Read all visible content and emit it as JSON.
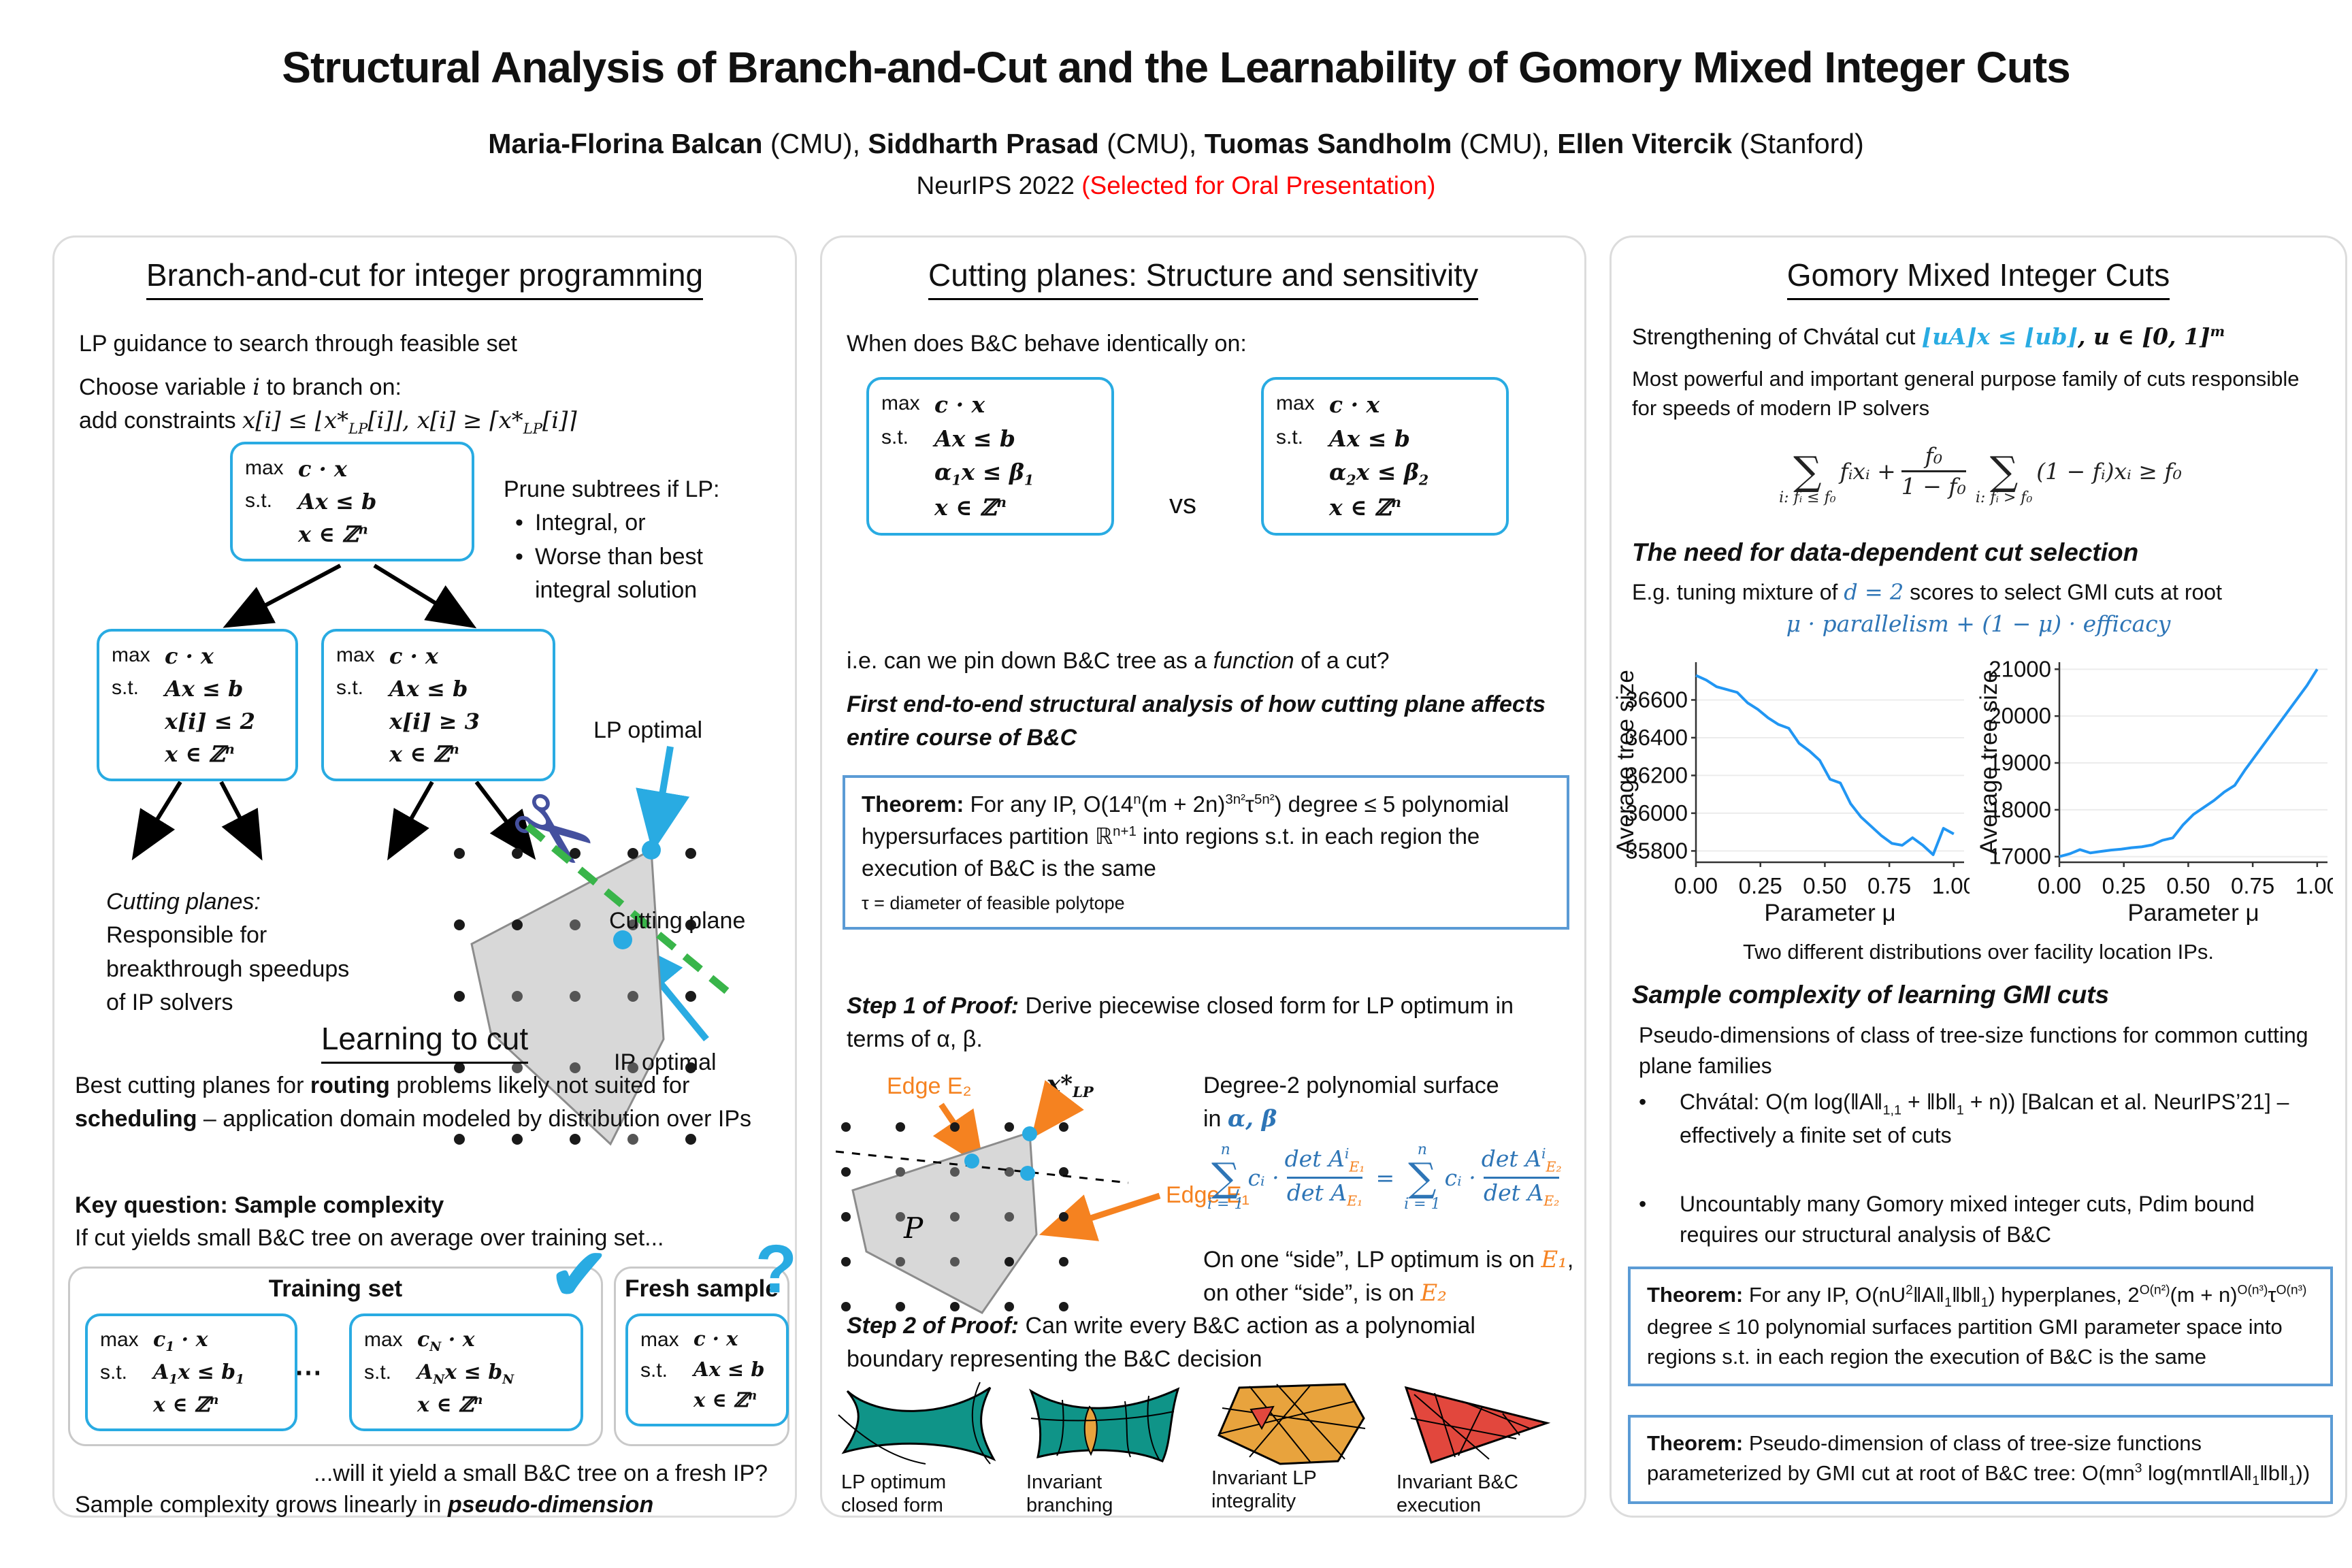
{
  "header": {
    "title": "Structural Analysis of Branch-and-Cut and the Learnability of Gomory Mixed Integer Cuts",
    "authors": [
      {
        "name": "Maria-Florina Balcan",
        "affil": " (CMU), "
      },
      {
        "name": "Siddharth Prasad",
        "affil": " (CMU), "
      },
      {
        "name": "Tuomas Sandholm",
        "affil": " (CMU), "
      },
      {
        "name": "Ellen Vitercik",
        "affil": " (Stanford)"
      }
    ],
    "venue": "NeurIPS 2022 ",
    "venue_note": "(Selected for Oral Presentation)",
    "venue_note_color": "#ff0000"
  },
  "colors": {
    "accent_blue": "#29abe2",
    "theorem_border": "#5b9bd5",
    "equation_blue": "#2e75b6",
    "edge_orange": "#f58220",
    "cut_green": "#39b54a",
    "chart_line": "#2196f3",
    "shape_teal": "#0f9488",
    "shape_orange": "#e8a33d",
    "shape_red": "#e2473d"
  },
  "col1": {
    "heading": "Branch-and-cut for integer programming",
    "p1": "LP guidance to search through feasible set",
    "p2a_pre": "Choose variable ",
    "p2a_var": "i",
    "p2a_post": " to branch on:",
    "p2b_pre": "add constraints ",
    "p2b_math": "x[i] ≤ ⌊x*{LP}[i]⌋, x[i] ≥ ⌈x*{LP}[i]⌉",
    "tree": {
      "root": [
        [
          "max",
          "c · x"
        ],
        [
          "s.t.",
          "Ax ≤ b"
        ],
        [
          "",
          "x ∈ ℤ^{n}"
        ]
      ],
      "left": [
        [
          "max",
          "c · x"
        ],
        [
          "s.t.",
          "Ax ≤ b"
        ],
        [
          "",
          "x[i] ≤ 2"
        ],
        [
          "",
          "x ∈ ℤ^{n}"
        ]
      ],
      "right": [
        [
          "max",
          "c · x"
        ],
        [
          "s.t.",
          "Ax ≤ b"
        ],
        [
          "",
          "x[i] ≥ 3"
        ],
        [
          "",
          "x ∈ ℤ^{n}"
        ]
      ]
    },
    "prune_title": "Prune subtrees if LP:",
    "prune_bullets": [
      "Integral, or",
      "Worse than best integral solution"
    ],
    "scissors_icon": "✂",
    "fig": {
      "lp_optimal": "LP optimal",
      "cutting_plane": "Cutting plane",
      "ip_optimal": "IP optimal",
      "note_italic": "Cutting planes:",
      "note_rest": "Responsible for breakthrough speedups of IP solvers"
    },
    "learn_heading": "Learning to cut",
    "learn_parts": [
      "Best cutting planes for ",
      "routing",
      " problems likely not suited for ",
      "scheduling",
      " – application domain modeled by distribution over IPs"
    ],
    "key_q": "Key question: Sample complexity",
    "if_cut": "If cut yields small B&C tree on average over training set...",
    "training_label": "Training set",
    "check_icon": "✔",
    "fresh_label": "Fresh sample",
    "question_icon": "?",
    "dots": "⋯",
    "train1": [
      [
        "max",
        "c{1} · x"
      ],
      [
        "s.t.",
        "A{1}x ≤ b{1}"
      ],
      [
        "",
        "x ∈ ℤ^{n}"
      ]
    ],
    "trainN": [
      [
        "max",
        "c{N} · x"
      ],
      [
        "s.t.",
        "A{N}x ≤ b{N}"
      ],
      [
        "",
        "x ∈ ℤ^{n}"
      ]
    ],
    "fresh": [
      [
        "max",
        "c · x"
      ],
      [
        "s.t.",
        "Ax ≤ b"
      ],
      [
        "",
        "x ∈ ℤ^{n}"
      ]
    ],
    "will": "...will it yield a small B&C tree on a fresh IP?",
    "sample_pre": "Sample complexity grows linearly in ",
    "sample_bold": "pseudo-dimension"
  },
  "col2": {
    "heading": "Cutting planes: Structure and sensitivity",
    "when": "When does B&C behave identically on:",
    "box1": [
      [
        "max",
        "c · x"
      ],
      [
        "s.t.",
        "Ax ≤ b"
      ],
      [
        "",
        "α{1}x ≤ β{1}"
      ],
      [
        "",
        "x ∈ ℤ^{n}"
      ]
    ],
    "vs": "vs",
    "box2": [
      [
        "max",
        "c · x"
      ],
      [
        "s.t.",
        "Ax ≤ b"
      ],
      [
        "",
        "α{2}x ≤ β{2}"
      ],
      [
        "",
        "x ∈ ℤ^{n}"
      ]
    ],
    "ie_parts": [
      "i.e. can we pin down B&C tree as a ",
      "function",
      " of a cut?"
    ],
    "claim": "First end-to-end structural analysis of how cutting plane affects entire course of B&C",
    "thm_label": "Theorem:",
    "thm_text": " For any IP, O(14^{n}(m + 2n)^{3n²}τ^{5n²}) degree ≤ 5 polynomial hypersurfaces partition ℝ^{n+1} into regions s.t. in each region the execution of B&C is the same",
    "thm_foot": "τ = diameter of feasible polytope",
    "step1_label": "Step 1 of Proof:",
    "step1_text": " Derive piecewise closed form for LP optimum in terms of α, β.",
    "fig": {
      "edge2": "Edge E₂",
      "xlp": "x*{LP}",
      "edge1": "Edge E₁",
      "p": "P",
      "deg_line1": "Degree-2 polynomial surface",
      "deg_line2_pre": "in ",
      "deg_ab": "α, β",
      "eq": {
        "sum_top": "n",
        "sum_bot": "i = 1",
        "coef": "cᵢ ·",
        "det": "det A",
        "sup_i": "i",
        "e1": "E₁",
        "e2": "E₂",
        "equals": "="
      },
      "side_parts": [
        "On one “side”, LP optimum is",
        " on ",
        "E₁",
        ", on other “side”, is on ",
        "E₂"
      ]
    },
    "step2_label": "Step 2 of Proof:",
    "step2_text": " Can write every B&C action as a polynomial boundary representing the B&C decision",
    "shape_labels": [
      "LP optimum closed form",
      "Invariant branching",
      "Invariant LP integrality",
      "Invariant B&C execution"
    ]
  },
  "col3": {
    "heading": "Gomory Mixed Integer Cuts",
    "strength_pre": "Strengthening of Chvátal cut ",
    "strength_math": "⌊uA⌋x ≤ ⌊ub⌋",
    "strength_post_math": ", u ∈ [0, 1]^{m}",
    "p1": "Most powerful and important general purpose family of cuts responsible for speeds of modern IP solvers",
    "gmi_eq": {
      "sum1_bot": "i: fᵢ ≤ f₀",
      "term1": "fᵢxᵢ +",
      "frac_top": "f₀",
      "frac_bot": "1 − f₀",
      "sum2_bot": "i: fᵢ > f₀",
      "term2": "(1 − fᵢ)xᵢ ≥ f₀"
    },
    "need_heading": "The need for data-dependent cut selection",
    "eg_pre": "E.g. tuning mixture of ",
    "eg_blue": "d = 2",
    "eg_post": " scores to select GMI cuts at root",
    "mu_formula": "μ · parallelism + (1 − μ) · efficacy",
    "caption": "Two different distributions over facility location IPs.",
    "sc_heading": "Sample complexity of learning GMI cuts",
    "sc_p1": "Pseudo-dimensions of class of tree-size functions for common cutting plane families",
    "bullet1_math": "Chvátal: O(m log(‖A‖{1,1} + ‖b‖{1} + n)) [Balcan et al. NeurIPS’21] – effectively a finite set of cuts",
    "bullet2": "Uncountably many Gomory mixed integer cuts, Pdim bound requires our structural analysis of B&C",
    "thm1_label": "Theorem:",
    "thm1_math": " For any IP, O(nU^{2}‖A‖{1}‖b‖{1}) hyperplanes, 2^{O(n²)}(m + n)^{O(n³)}τ^{O(n³)} degree ≤ 10 polynomial surfaces partition GMI parameter space into regions s.t. in each region the execution of B&C is the same",
    "thm2_label": "Theorem:",
    "thm2_math": " Pseudo-dimension of class of tree-size functions parameterized by GMI cut at root of B&C tree: O(mn^{3} log(mnτ‖A‖{1}‖b‖{1}))"
  },
  "chart_data": [
    {
      "type": "line",
      "title": "",
      "xlabel": "Parameter μ",
      "ylabel": "Average tree size",
      "xlim": [
        0,
        1.04
      ],
      "ylim": [
        35740,
        36800
      ],
      "xticks": [
        0,
        0.25,
        0.5,
        0.75,
        1.0
      ],
      "xtick_labels": [
        "0.00",
        "0.25",
        "0.50",
        "0.75",
        "1.00"
      ],
      "yticks": [
        35800,
        36000,
        36200,
        36400,
        36600
      ],
      "grid": true,
      "legend": "none",
      "color": "#2196f3",
      "x": [
        0,
        0.04,
        0.08,
        0.12,
        0.16,
        0.2,
        0.24,
        0.28,
        0.32,
        0.36,
        0.4,
        0.44,
        0.48,
        0.52,
        0.56,
        0.6,
        0.64,
        0.68,
        0.72,
        0.76,
        0.8,
        0.84,
        0.88,
        0.92,
        0.96,
        1.0
      ],
      "y": [
        36730,
        36705,
        36670,
        36655,
        36640,
        36585,
        36550,
        36505,
        36470,
        36450,
        36370,
        36330,
        36280,
        36180,
        36160,
        36050,
        35980,
        35930,
        35880,
        35840,
        35830,
        35870,
        35830,
        35780,
        35920,
        35890
      ]
    },
    {
      "type": "line",
      "title": "",
      "xlabel": "Parameter μ",
      "ylabel": "Average tree size",
      "xlim": [
        0,
        1.04
      ],
      "ylim": [
        16880,
        21150
      ],
      "xticks": [
        0,
        0.25,
        0.5,
        0.75,
        1.0
      ],
      "xtick_labels": [
        "0.00",
        "0.25",
        "0.50",
        "0.75",
        "1.00"
      ],
      "yticks": [
        17000,
        18000,
        19000,
        20000,
        21000
      ],
      "grid": true,
      "legend": "none",
      "color": "#2196f3",
      "x": [
        0,
        0.04,
        0.08,
        0.12,
        0.16,
        0.2,
        0.24,
        0.28,
        0.32,
        0.36,
        0.4,
        0.44,
        0.48,
        0.52,
        0.56,
        0.6,
        0.64,
        0.68,
        0.72,
        0.76,
        0.8,
        0.84,
        0.88,
        0.92,
        0.96,
        1.0
      ],
      "y": [
        17000,
        17060,
        17150,
        17080,
        17110,
        17140,
        17160,
        17190,
        17210,
        17250,
        17350,
        17400,
        17680,
        17900,
        18050,
        18200,
        18380,
        18520,
        18850,
        19150,
        19450,
        19750,
        20050,
        20350,
        20650,
        21000
      ]
    }
  ]
}
